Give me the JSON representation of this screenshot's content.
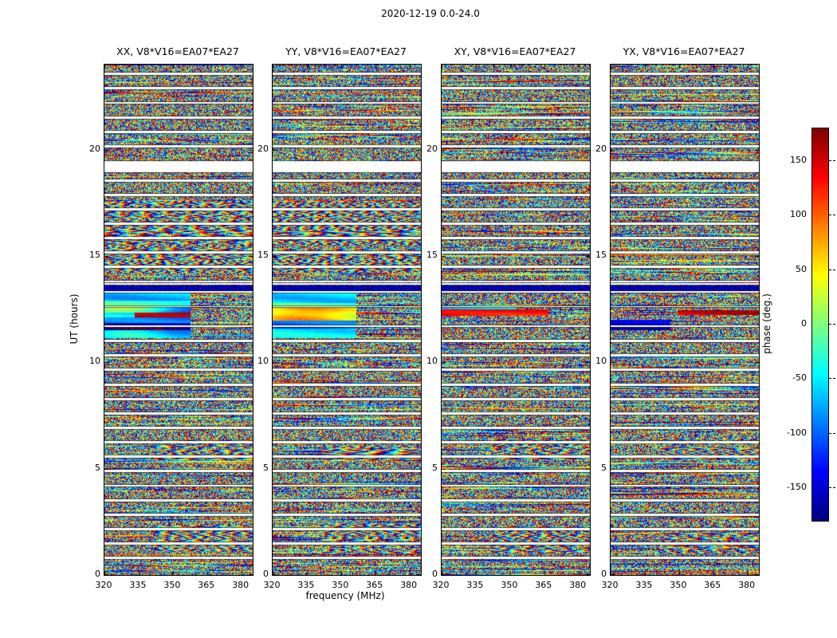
{
  "chart_data": {
    "type": "heatmap",
    "title": "2020-12-19 0.0-24.0",
    "layout": "four vertical waterfall panels plus colorbar, white figure background, classic matplotlib style",
    "panels": [
      {
        "title": "XX, V8*V16=EA07*EA27",
        "pol": "XX"
      },
      {
        "title": "YY, V8*V16=EA07*EA27",
        "pol": "YY"
      },
      {
        "title": "XY, V8*V16=EA07*EA27",
        "pol": "XY"
      },
      {
        "title": "YX, V8*V16=EA07*EA27",
        "pol": "YX"
      }
    ],
    "xaxis": {
      "label": "frequency (MHz)",
      "range": [
        320,
        385
      ],
      "ticks": [
        320,
        335,
        350,
        365,
        380
      ]
    },
    "yaxis": {
      "label": "UT (hours)",
      "range": [
        0,
        24
      ],
      "ticks": [
        0,
        5,
        10,
        15,
        20
      ]
    },
    "colorbar": {
      "label": "phase (deg.)",
      "range": [
        -180,
        180
      ],
      "ticks": [
        150,
        100,
        50,
        0,
        -50,
        -100,
        -150
      ],
      "colormap": "jet"
    },
    "description": "Interferometer visibility phase vs frequency and time for baseline V8*V16=EA07*EA27; dense pseudo-random phase speckle within scans separated by thin white gaps; coherent smooth phase bands near UT 11-13, a dark navy band near UT 13.5, a solid white band near UT 19, and fringe-like moire patterns between UT 14-17.5 in XX and YY.",
    "scan_gaps_ut": [
      [
        0.8,
        0.11
      ],
      [
        1.48,
        0.11
      ],
      [
        2.16,
        0.11
      ],
      [
        2.84,
        0.11
      ],
      [
        3.52,
        0.11
      ],
      [
        4.2,
        0.11
      ],
      [
        4.88,
        0.11
      ],
      [
        5.56,
        0.11
      ],
      [
        6.24,
        0.11
      ],
      [
        6.92,
        0.11
      ],
      [
        7.6,
        0.11
      ],
      [
        8.28,
        0.11
      ],
      [
        8.96,
        0.11
      ],
      [
        9.64,
        0.11
      ],
      [
        10.32,
        0.11
      ],
      [
        11.0,
        0.11
      ],
      [
        11.7,
        0.05
      ],
      [
        12.62,
        0.05
      ],
      [
        13.31,
        0.06
      ],
      [
        13.68,
        0.06
      ],
      [
        13.8,
        0.11
      ],
      [
        14.48,
        0.11
      ],
      [
        15.16,
        0.11
      ],
      [
        15.84,
        0.11
      ],
      [
        16.52,
        0.11
      ],
      [
        17.2,
        0.11
      ],
      [
        17.88,
        0.11
      ],
      [
        18.56,
        0.11
      ],
      [
        20.16,
        0.11
      ],
      [
        20.84,
        0.11
      ],
      [
        21.52,
        0.11
      ],
      [
        22.2,
        0.11
      ],
      [
        22.88,
        0.11
      ],
      [
        23.56,
        0.11
      ]
    ],
    "features": {
      "dark_band_ut": [
        13.35,
        13.63
      ],
      "white_band_ut": [
        18.92,
        19.47
      ],
      "smooth_region_ut": [
        11.15,
        13.28
      ],
      "fringe_region_ut": [
        14.2,
        17.6
      ],
      "fringe_panels": [
        0,
        1
      ],
      "secondary_fringe_ut": [
        [
          1.0,
          2.4
        ],
        [
          5.4,
          6.4
        ]
      ]
    }
  }
}
